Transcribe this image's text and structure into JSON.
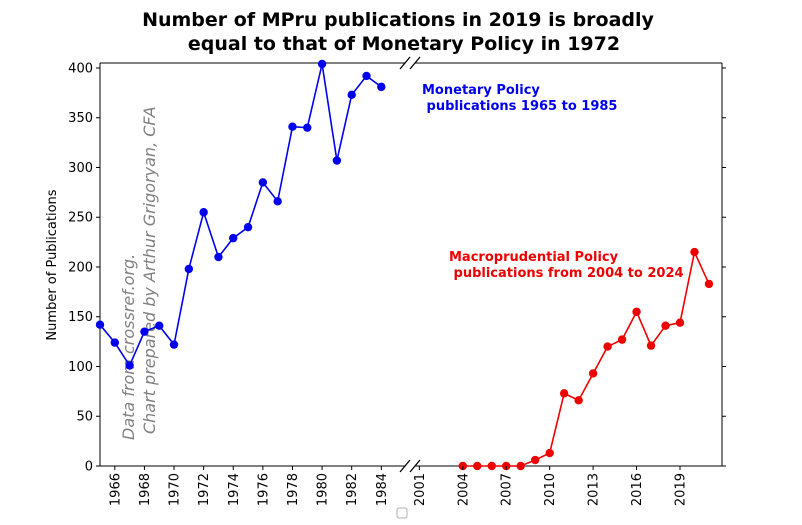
{
  "chart_data": {
    "type": "line",
    "title_lines": [
      "Number of MPru publications in 2019 is broadly",
      "equal to that of Monetary Policy in 1972"
    ],
    "xlabel": "",
    "ylabel": "Number of Publications",
    "ylim": [
      0,
      405
    ],
    "yticks": [
      0,
      50,
      100,
      150,
      200,
      250,
      300,
      350,
      400
    ],
    "grid": false,
    "broken_x_axis": true,
    "left_panel": {
      "xlim": [
        1965,
        1985.6
      ],
      "xticks": [
        1966,
        1968,
        1970,
        1972,
        1974,
        1976,
        1978,
        1980,
        1982,
        1984
      ]
    },
    "right_panel": {
      "xlim": [
        2000.7,
        2021.9
      ],
      "xticks": [
        2001,
        2004,
        2007,
        2010,
        2013,
        2016,
        2019
      ]
    },
    "series": [
      {
        "name": "Monetary Policy publications 1965 to 1985",
        "color": "#0000ee",
        "panel": "left",
        "x": [
          1965,
          1966,
          1967,
          1968,
          1969,
          1970,
          1971,
          1972,
          1973,
          1974,
          1975,
          1976,
          1977,
          1978,
          1979,
          1980,
          1981,
          1982,
          1983,
          1984
        ],
        "y": [
          142,
          124,
          101,
          135,
          141,
          122,
          198,
          255,
          210,
          229,
          240,
          285,
          266,
          341,
          340,
          404,
          307,
          373,
          392,
          381
        ]
      },
      {
        "name": "Macroprudential Policy publications from 2004 to 2024",
        "color": "#ee0000",
        "panel": "right",
        "x": [
          2004,
          2005,
          2006,
          2007,
          2008,
          2009,
          2010,
          2011,
          2012,
          2013,
          2014,
          2015,
          2016,
          2017,
          2018,
          2019,
          2020,
          2021
        ],
        "y": [
          0,
          0,
          0,
          0,
          0,
          6,
          13,
          73,
          66,
          93,
          120,
          127,
          155,
          121,
          141,
          144,
          215,
          183
        ]
      }
    ],
    "annotations": [
      {
        "lines": [
          "Monetary Policy",
          " publications 1965 to 1985"
        ],
        "color": "#0000ee"
      },
      {
        "lines": [
          "Macroprudential Policy",
          " publications from 2004 to 2024"
        ],
        "color": "#ee0000"
      }
    ],
    "watermark_lines": [
      "Data from crossref.org.",
      "Chart prepared by Arthur Grigoryan, CFA"
    ]
  }
}
